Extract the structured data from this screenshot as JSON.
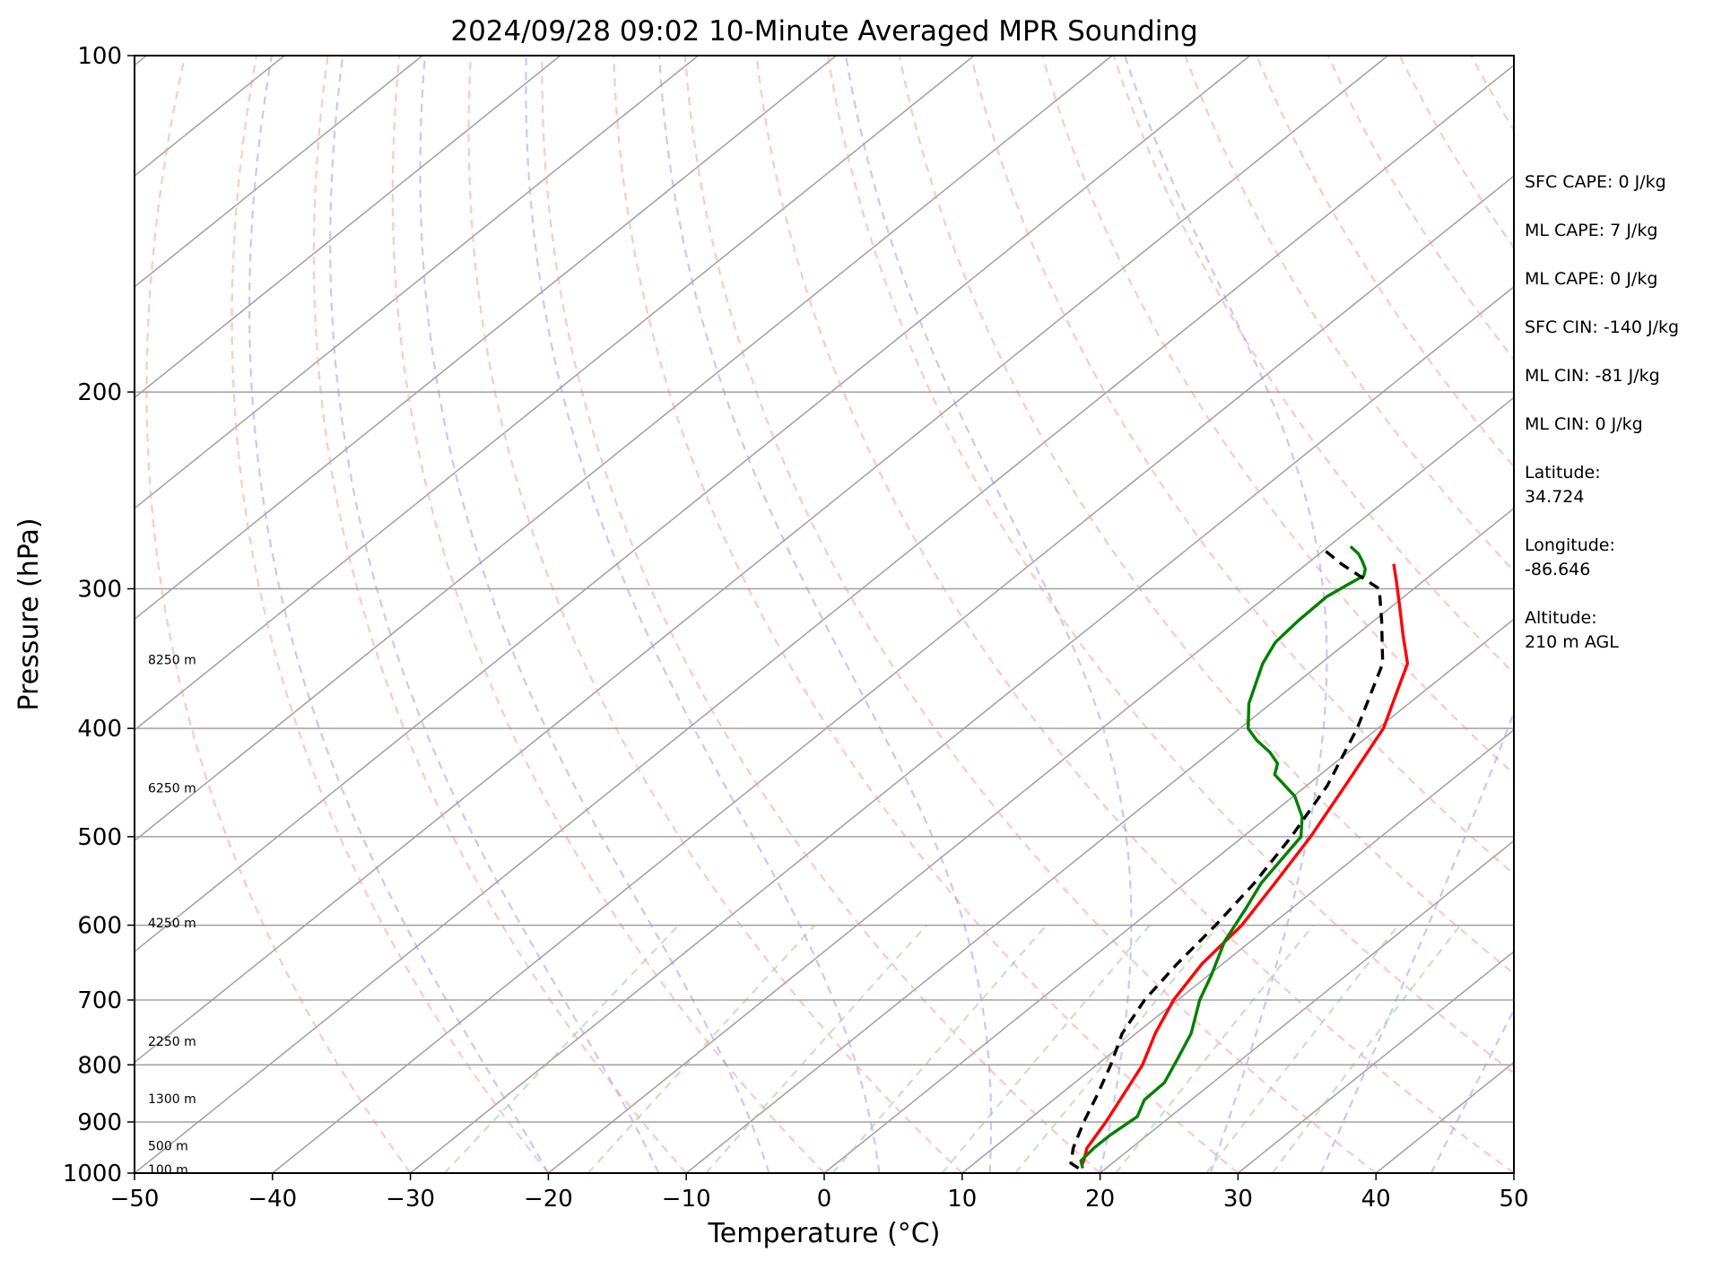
{
  "chart_data": {
    "type": "line",
    "title": "2024/09/28 09:02 10-Minute Averaged MPR Sounding",
    "xlabel": "Temperature (°C)",
    "ylabel": "Pressure (hPa)",
    "xlim": [
      -50,
      50
    ],
    "ylim": [
      1000,
      100
    ],
    "y_scale": "log",
    "x_ticks": [
      "−50",
      "−40",
      "−30",
      "−20",
      "−10",
      "0",
      "10",
      "20",
      "30",
      "40",
      "50"
    ],
    "x_tick_values": [
      -50,
      -40,
      -30,
      -20,
      -10,
      0,
      10,
      20,
      30,
      40,
      50
    ],
    "y_ticks": [
      "100",
      "200",
      "300",
      "400",
      "500",
      "600",
      "700",
      "800",
      "900",
      "1000"
    ],
    "y_tick_values": [
      100,
      200,
      300,
      400,
      500,
      600,
      700,
      800,
      900,
      1000
    ],
    "grid": true,
    "background_lines": {
      "isotherm_color": "#a0a0a0",
      "dry_adiabat_color": "#ff9999",
      "moist_adiabat_color": "#9999ff",
      "mixing_ratio_color": "#99cc99"
    },
    "series": [
      {
        "color": "#ff0000",
        "style": "solid",
        "points": [
          [
            18.0,
            985
          ],
          [
            17.7,
            975
          ],
          [
            16.8,
            950
          ],
          [
            15.8,
            900
          ],
          [
            14.6,
            850
          ],
          [
            13.3,
            800
          ],
          [
            11.4,
            750
          ],
          [
            9.7,
            700
          ],
          [
            8.5,
            650
          ],
          [
            7.9,
            600
          ],
          [
            6.5,
            550
          ],
          [
            4.9,
            500
          ],
          [
            2.8,
            450
          ],
          [
            0.4,
            400
          ],
          [
            -2.0,
            370
          ],
          [
            -3.7,
            350
          ],
          [
            -6.6,
            330
          ],
          [
            -9.6,
            310
          ],
          [
            -12.0,
            295
          ],
          [
            -13.7,
            285
          ]
        ]
      },
      {
        "color": "#008000",
        "style": "solid",
        "points": [
          [
            18.3,
            990
          ],
          [
            17.5,
            975
          ],
          [
            17.3,
            950
          ],
          [
            17.3,
            925
          ],
          [
            17.6,
            890
          ],
          [
            16.6,
            860
          ],
          [
            16.5,
            830
          ],
          [
            15.3,
            790
          ],
          [
            14.0,
            750
          ],
          [
            11.6,
            700
          ],
          [
            10.2,
            665
          ],
          [
            8.1,
            620
          ],
          [
            6.7,
            580
          ],
          [
            5.5,
            550
          ],
          [
            4.2,
            500
          ],
          [
            2.5,
            480
          ],
          [
            0.1,
            460
          ],
          [
            -3.3,
            440
          ],
          [
            -4.1,
            430
          ],
          [
            -5.7,
            420
          ],
          [
            -7.7,
            410
          ],
          [
            -9.4,
            400
          ],
          [
            -11.6,
            380
          ],
          [
            -14.2,
            350
          ],
          [
            -15.2,
            335
          ],
          [
            -15.5,
            320
          ],
          [
            -15.6,
            305
          ],
          [
            -15.2,
            298
          ],
          [
            -14.8,
            292
          ],
          [
            -15.3,
            288
          ],
          [
            -16.3,
            283
          ],
          [
            -17.2,
            279
          ],
          [
            -18.4,
            275
          ]
        ]
      },
      {
        "color": "#000000",
        "style": "dashed",
        "points": [
          [
            18.0,
            990
          ],
          [
            17.0,
            980
          ],
          [
            15.8,
            950
          ],
          [
            14.2,
            900
          ],
          [
            12.7,
            850
          ],
          [
            11.0,
            800
          ],
          [
            9.0,
            750
          ],
          [
            7.6,
            700
          ],
          [
            6.7,
            650
          ],
          [
            6.0,
            600
          ],
          [
            5.0,
            550
          ],
          [
            3.5,
            500
          ],
          [
            1.5,
            450
          ],
          [
            -1.5,
            400
          ],
          [
            -5.5,
            350
          ],
          [
            -9.5,
            320
          ],
          [
            -12.5,
            300
          ],
          [
            -17.5,
            285
          ],
          [
            -20.6,
            275
          ]
        ]
      }
    ],
    "height_labels": [
      {
        "text": "100 m",
        "p": 993
      },
      {
        "text": "500 m",
        "p": 945
      },
      {
        "text": "1300 m",
        "p": 858
      },
      {
        "text": "2250 m",
        "p": 762
      },
      {
        "text": "4250 m",
        "p": 597
      },
      {
        "text": "6250 m",
        "p": 452
      },
      {
        "text": "8250 m",
        "p": 347
      }
    ]
  },
  "stats": [
    "SFC CAPE: 0 J/kg",
    "ML CAPE: 7 J/kg",
    "ML CAPE: 0 J/kg",
    "SFC CIN: -140 J/kg",
    "ML CIN: -81 J/kg",
    "ML CIN: 0 J/kg"
  ],
  "location": {
    "latitude_label": "Latitude:",
    "latitude": "34.724",
    "longitude_label": "Longitude:",
    "longitude": "-86.646",
    "altitude_label": "Altitude:",
    "altitude": "210 m AGL"
  }
}
